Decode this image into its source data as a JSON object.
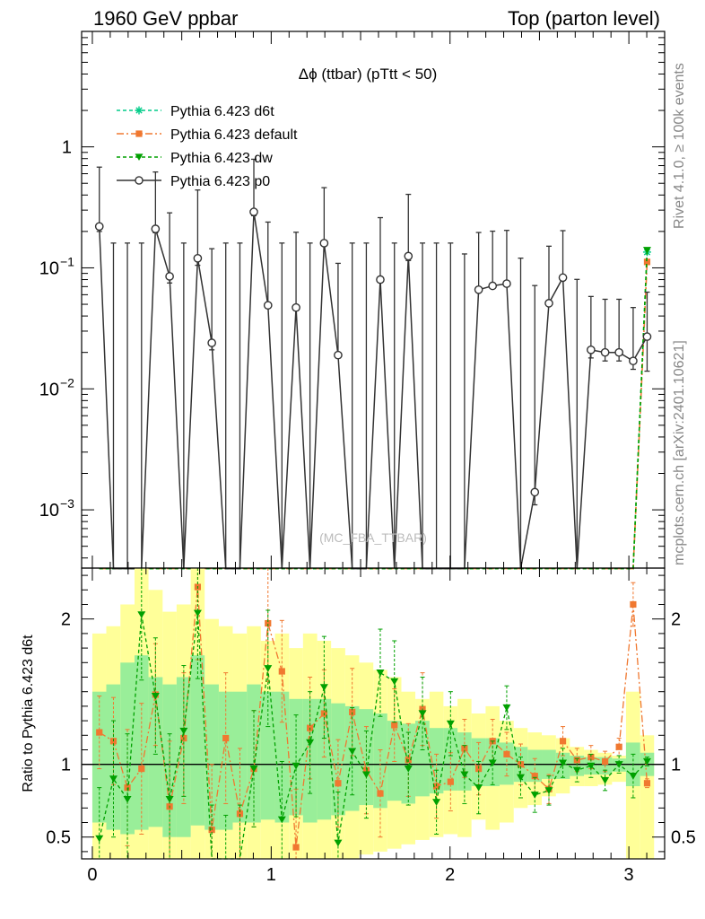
{
  "header": {
    "left": "1960 GeV ppbar",
    "right": "Top (parton level)"
  },
  "side_labels": {
    "rivet": "Rivet 4.1.0, ≥ 100k events",
    "mcplots": "mcplots.cern.ch [arXiv:2401.10621]"
  },
  "watermark": "(MC_FBA_TTBAR)",
  "colors": {
    "d6t": "#00cc88",
    "default": "#f07830",
    "dw": "#00a000",
    "p0": "#333333",
    "band_yellow": "#ffff99",
    "band_green": "#99ee99",
    "ref_line": "#000000"
  },
  "chart_data": [
    {
      "type": "line",
      "title": "Δϕ (ttbar) (pTtt < 50)",
      "yscale": "log",
      "ylim": [
        0.00033,
        9.0
      ],
      "xlim": [
        -0.06,
        3.2
      ],
      "yticks": [
        {
          "value": 0.001,
          "label": "10",
          "exp": "−3"
        },
        {
          "value": 0.01,
          "label": "10",
          "exp": "−2"
        },
        {
          "value": 0.1,
          "label": "10",
          "exp": "−1"
        },
        {
          "value": 1,
          "label": "1",
          "exp": ""
        }
      ],
      "legend": [
        {
          "key": "d6t",
          "label": "Pythia 6.423 d6t",
          "marker": "star",
          "dash": "4,3"
        },
        {
          "key": "default",
          "label": "Pythia 6.423 default",
          "marker": "square",
          "dash": "8,3,2,3"
        },
        {
          "key": "dw",
          "label": "Pythia 6.423 dw",
          "marker": "triangle",
          "dash": "4,3"
        },
        {
          "key": "p0",
          "label": "Pythia 6.423 p0",
          "marker": "circle",
          "dash": ""
        }
      ],
      "x": [
        0.039,
        0.118,
        0.196,
        0.275,
        0.353,
        0.432,
        0.511,
        0.589,
        0.668,
        0.746,
        0.825,
        0.903,
        0.982,
        1.06,
        1.139,
        1.217,
        1.296,
        1.374,
        1.453,
        1.532,
        1.61,
        1.689,
        1.767,
        1.846,
        1.924,
        2.003,
        2.081,
        2.16,
        2.238,
        2.317,
        2.395,
        2.474,
        2.553,
        2.631,
        2.71,
        2.788,
        2.867,
        2.945,
        3.024,
        3.102
      ],
      "series": [
        {
          "name": "Pythia 6.423 p0",
          "key": "p0",
          "values": [
            0.22,
            0.0003,
            0.0003,
            0.0003,
            0.21,
            0.085,
            0.0003,
            0.12,
            0.024,
            0.0003,
            0.0003,
            0.29,
            0.049,
            0.0003,
            0.047,
            0.0003,
            0.16,
            0.019,
            0.0003,
            0.0003,
            0.08,
            0.0003,
            0.125,
            0.0003,
            0.0003,
            0.0003,
            0.0003,
            0.066,
            0.071,
            0.074,
            0.0003,
            0.0014,
            0.051,
            0.083,
            0.0003,
            0.021,
            0.02,
            0.02,
            0.017,
            0.027
          ],
          "err_hi": [
            0.46,
            0.16,
            0.16,
            0.16,
            0.41,
            0.2,
            0.16,
            0.32,
            0.12,
            0.16,
            0.16,
            0.5,
            0.19,
            0.16,
            0.15,
            0.16,
            0.3,
            0.09,
            0.16,
            0.16,
            0.18,
            0.16,
            0.28,
            0.16,
            0.16,
            0.16,
            0.13,
            0.13,
            0.13,
            0.13,
            0.12,
            0.07,
            0.1,
            0.12,
            0.08,
            0.037,
            0.035,
            0.035,
            0.03,
            0.036
          ],
          "err_lo": [
            0.02,
            0.0003,
            0.0003,
            0.0003,
            0.015,
            0.01,
            0.0003,
            0.015,
            0.003,
            0.0003,
            0.0003,
            0.02,
            0.002,
            0.0003,
            0.001,
            0.0003,
            0.008,
            0.0008,
            0.0003,
            0.0003,
            0.002,
            0.0003,
            0.01,
            0.0003,
            0.0003,
            0.0003,
            0.0003,
            0.0007,
            0.0009,
            0.001,
            0.0003,
            0.0003,
            0.0008,
            0.0015,
            0.0003,
            0.003,
            0.003,
            0.003,
            0.0025,
            0.013
          ]
        },
        {
          "name": "Pythia 6.423 d6t",
          "key": "d6t",
          "values_note": "near plot floor except final bin",
          "values": [
            0.0003,
            0.0003,
            0.0003,
            0.0003,
            0.0003,
            0.0003,
            0.0003,
            0.0003,
            0.0003,
            0.0003,
            0.0003,
            0.0003,
            0.0003,
            0.0003,
            0.0003,
            0.0003,
            0.0003,
            0.0003,
            0.0003,
            0.0003,
            0.0003,
            0.0003,
            0.0003,
            0.0003,
            0.0003,
            0.0003,
            0.0003,
            0.0003,
            0.0003,
            0.0003,
            0.0003,
            0.0003,
            0.0003,
            0.0003,
            0.0003,
            0.0003,
            0.0003,
            0.0003,
            0.0003,
            0.135
          ]
        },
        {
          "name": "Pythia 6.423 default",
          "key": "default",
          "values": [
            0.0003,
            0.0003,
            0.0003,
            0.0003,
            0.0003,
            0.0003,
            0.0003,
            0.0003,
            0.0003,
            0.0003,
            0.0003,
            0.0003,
            0.0003,
            0.0003,
            0.0003,
            0.0003,
            0.0003,
            0.0003,
            0.0003,
            0.0003,
            0.0003,
            0.0003,
            0.0003,
            0.0003,
            0.0003,
            0.0003,
            0.0003,
            0.0003,
            0.0003,
            0.0003,
            0.0003,
            0.0003,
            0.0003,
            0.0003,
            0.0003,
            0.0003,
            0.0003,
            0.0003,
            0.0003,
            0.112
          ]
        },
        {
          "name": "Pythia 6.423 dw",
          "key": "dw",
          "values": [
            0.0003,
            0.0003,
            0.0003,
            0.0003,
            0.0003,
            0.0003,
            0.0003,
            0.0003,
            0.0003,
            0.0003,
            0.0003,
            0.0003,
            0.0003,
            0.0003,
            0.0003,
            0.0003,
            0.0003,
            0.0003,
            0.0003,
            0.0003,
            0.0003,
            0.0003,
            0.0003,
            0.0003,
            0.0003,
            0.0003,
            0.0003,
            0.0003,
            0.0003,
            0.0003,
            0.0003,
            0.0003,
            0.0003,
            0.0003,
            0.0003,
            0.0003,
            0.0003,
            0.0003,
            0.0003,
            0.14
          ]
        }
      ]
    },
    {
      "type": "line",
      "ylabel": "Ratio to Pythia 6.423 d6t",
      "ylim": [
        0.35,
        2.35
      ],
      "xlim": [
        -0.06,
        3.2
      ],
      "xticks": [
        {
          "value": 0,
          "label": "0"
        },
        {
          "value": 1,
          "label": "1"
        },
        {
          "value": 2,
          "label": "2"
        },
        {
          "value": 3,
          "label": "3"
        }
      ],
      "yticks": [
        {
          "value": 0.5,
          "label": "0.5"
        },
        {
          "value": 1,
          "label": "1"
        },
        {
          "value": 2,
          "label": "2"
        }
      ],
      "reference": 1,
      "band_edges": [
        0.0,
        0.078,
        0.157,
        0.236,
        0.314,
        0.393,
        0.471,
        0.55,
        0.628,
        0.707,
        0.785,
        0.864,
        0.942,
        1.021,
        1.1,
        1.178,
        1.257,
        1.335,
        1.414,
        1.492,
        1.571,
        1.649,
        1.728,
        1.806,
        1.885,
        1.963,
        2.042,
        2.12,
        2.199,
        2.277,
        2.356,
        2.434,
        2.513,
        2.592,
        2.67,
        2.749,
        2.827,
        2.906,
        2.984,
        3.063,
        3.141
      ],
      "band_yellow_lo": [
        0.35,
        0.35,
        0.35,
        0.35,
        0.35,
        0.35,
        0.35,
        0.35,
        0.35,
        0.35,
        0.35,
        0.35,
        0.35,
        0.35,
        0.35,
        0.35,
        0.35,
        0.35,
        0.35,
        0.38,
        0.4,
        0.42,
        0.45,
        0.48,
        0.5,
        0.52,
        0.5,
        0.62,
        0.55,
        0.6,
        0.7,
        0.72,
        0.78,
        0.8,
        0.85,
        0.85,
        0.86,
        0.88,
        0.35,
        0.35
      ],
      "band_yellow_hi": [
        1.9,
        1.95,
        2.1,
        2.35,
        2.2,
        2.05,
        2.1,
        2.35,
        2.0,
        1.95,
        1.9,
        1.95,
        1.85,
        1.9,
        1.8,
        1.9,
        1.85,
        1.8,
        1.75,
        1.7,
        1.65,
        1.6,
        1.5,
        1.45,
        1.5,
        1.4,
        1.45,
        1.35,
        1.4,
        1.3,
        1.25,
        1.22,
        1.2,
        1.18,
        1.12,
        1.1,
        1.08,
        1.06,
        1.5,
        1.2
      ],
      "band_green_lo": [
        0.6,
        0.55,
        0.52,
        0.55,
        0.57,
        0.5,
        0.5,
        0.58,
        0.55,
        0.55,
        0.6,
        0.6,
        0.62,
        0.6,
        0.65,
        0.6,
        0.62,
        0.65,
        0.68,
        0.72,
        0.7,
        0.75,
        0.73,
        0.78,
        0.8,
        0.82,
        0.82,
        0.85,
        0.85,
        0.86,
        0.88,
        0.88,
        0.9,
        0.9,
        0.92,
        0.93,
        0.93,
        0.95,
        0.85,
        0.92
      ],
      "band_green_hi": [
        1.5,
        1.55,
        1.7,
        1.75,
        1.6,
        1.55,
        1.6,
        1.75,
        1.55,
        1.5,
        1.5,
        1.55,
        1.5,
        1.5,
        1.45,
        1.45,
        1.45,
        1.42,
        1.4,
        1.38,
        1.35,
        1.3,
        1.28,
        1.3,
        1.25,
        1.25,
        1.22,
        1.18,
        1.18,
        1.15,
        1.12,
        1.1,
        1.1,
        1.08,
        1.06,
        1.05,
        1.05,
        1.04,
        1.15,
        1.08
      ],
      "series": [
        {
          "name": "Pythia 6.423 default",
          "key": "default",
          "values": [
            1.22,
            1.16,
            0.84,
            0.97,
            1.48,
            0.71,
            1.18,
            2.22,
            0.55,
            1.18,
            0.66,
            0.97,
            1.97,
            1.64,
            0.43,
            1.25,
            1.35,
            0.87,
            1.36,
            0.96,
            0.8,
            1.27,
            1.03,
            1.38,
            0.85,
            0.88,
            1.11,
            0.97,
            1.16,
            1.07,
            1.0,
            0.92,
            0.83,
            1.16,
            1.03,
            1.05,
            1.02,
            1.12,
            2.1,
            0.87
          ],
          "err": [
            0.25,
            0.3,
            0.4,
            0.45,
            0.35,
            0.45,
            0.45,
            0.5,
            0.45,
            0.45,
            0.45,
            0.4,
            0.4,
            0.35,
            0.4,
            0.35,
            0.3,
            0.3,
            0.3,
            0.3,
            0.3,
            0.25,
            0.25,
            0.25,
            0.22,
            0.2,
            0.2,
            0.18,
            0.15,
            0.15,
            0.14,
            0.12,
            0.1,
            0.1,
            0.08,
            0.08,
            0.07,
            0.06,
            0.15,
            0.03
          ]
        },
        {
          "name": "Pythia 6.423 dw",
          "key": "dw",
          "values": [
            0.49,
            0.9,
            0.76,
            2.03,
            1.47,
            0.76,
            1.23,
            2.04,
            0.32,
            0.25,
            0.32,
            0.97,
            1.66,
            0.62,
            0.99,
            1.15,
            1.53,
            0.46,
            1.09,
            0.93,
            1.63,
            1.57,
            0.97,
            1.35,
            0.74,
            1.28,
            0.93,
            0.84,
            1.01,
            1.39,
            0.91,
            0.79,
            0.82,
            1.01,
            0.96,
            0.99,
            0.89,
            1.0,
            0.92,
            1.02
          ],
          "err": [
            0.35,
            0.4,
            0.45,
            0.45,
            0.4,
            0.45,
            0.45,
            0.45,
            0.4,
            0.4,
            0.4,
            0.4,
            0.4,
            0.4,
            0.35,
            0.35,
            0.35,
            0.35,
            0.3,
            0.3,
            0.3,
            0.28,
            0.25,
            0.25,
            0.22,
            0.22,
            0.2,
            0.18,
            0.15,
            0.15,
            0.14,
            0.12,
            0.1,
            0.1,
            0.08,
            0.08,
            0.07,
            0.06,
            0.15,
            0.03
          ]
        }
      ]
    }
  ]
}
